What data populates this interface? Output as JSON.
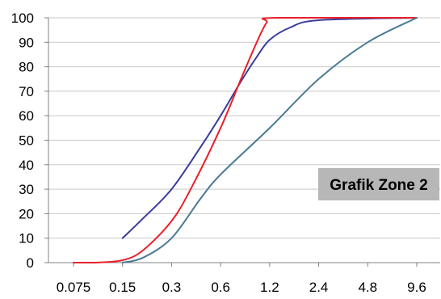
{
  "chart_data": {
    "type": "line",
    "x_scale": "log",
    "categories": [
      "0.075",
      "0.15",
      "0.3",
      "0.6",
      "1.2",
      "2.4",
      "4.8",
      "9.6"
    ],
    "ylim": [
      0,
      100
    ],
    "y_ticks": [
      0,
      10,
      20,
      30,
      40,
      50,
      60,
      70,
      80,
      90,
      100
    ],
    "grid": "horizontal",
    "annotation": "Grafik Zone 2",
    "series": [
      {
        "color": "#3a3d9a",
        "points": [
          [
            0.15,
            10
          ],
          [
            0.2,
            18
          ],
          [
            0.3,
            30
          ],
          [
            0.45,
            47
          ],
          [
            0.6,
            60
          ],
          [
            0.8,
            74
          ],
          [
            1.0,
            84
          ],
          [
            1.2,
            91
          ],
          [
            1.6,
            96
          ],
          [
            2.4,
            99
          ],
          [
            9.6,
            100
          ]
        ]
      },
      {
        "color": "#e8202a",
        "points": [
          [
            0.075,
            0
          ],
          [
            0.1,
            0
          ],
          [
            0.15,
            1
          ],
          [
            0.2,
            5
          ],
          [
            0.3,
            17
          ],
          [
            0.4,
            31
          ],
          [
            0.6,
            55
          ],
          [
            0.8,
            75
          ],
          [
            1.0,
            90
          ],
          [
            1.15,
            98
          ],
          [
            1.3,
            100
          ],
          [
            9.6,
            100
          ]
        ]
      },
      {
        "color": "#4a7a94",
        "points": [
          [
            0.15,
            0
          ],
          [
            0.2,
            2
          ],
          [
            0.3,
            10
          ],
          [
            0.45,
            26
          ],
          [
            0.6,
            36
          ],
          [
            1.2,
            55
          ],
          [
            2.4,
            75
          ],
          [
            4.8,
            90
          ],
          [
            9.6,
            100
          ]
        ]
      }
    ]
  }
}
